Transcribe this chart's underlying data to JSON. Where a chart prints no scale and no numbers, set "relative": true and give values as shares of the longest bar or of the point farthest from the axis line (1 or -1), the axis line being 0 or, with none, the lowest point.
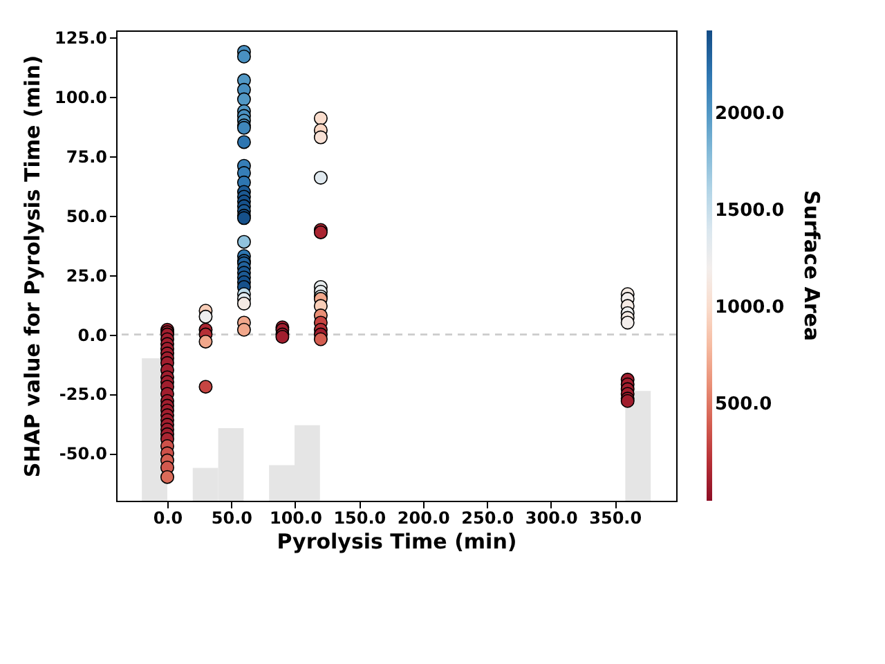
{
  "chart_data": [
    {
      "type": "scatter",
      "ylabel": "SHAP value for Pyrolysis Time (min)",
      "clabel": "Surface Area",
      "xlim": [
        -40,
        398
      ],
      "tick_labels": "y",
      "ylim": [
        -70,
        128
      ],
      "yticks": [
        {
          "value": -50,
          "label": "-50.0"
        },
        {
          "value": -25,
          "label": "-25.0"
        },
        {
          "value": 0,
          "label": "0.0"
        },
        {
          "value": 25,
          "label": "25.0"
        },
        {
          "value": 50,
          "label": "50.0"
        },
        {
          "value": 75,
          "label": "75.0"
        },
        {
          "value": 100,
          "label": "100.0"
        },
        {
          "value": 125,
          "label": "125.0"
        }
      ],
      "clim": [
        0,
        2430
      ],
      "cticks": [
        {
          "value": 500,
          "label": "500.0"
        },
        {
          "value": 1000,
          "label": "1000.0"
        },
        {
          "value": 1500,
          "label": "1500.0"
        },
        {
          "value": 2000,
          "label": "2000.0"
        }
      ],
      "grid": false,
      "marker": "circle",
      "ref_lines": [
        {
          "axis": "y",
          "value": 0,
          "color": "#cccccc",
          "line_style": "dashed"
        }
      ],
      "series": [
        {
          "x": [
            0,
            0,
            0,
            0,
            0,
            0,
            0,
            0,
            0,
            0,
            0,
            0,
            0,
            0,
            0,
            0,
            0,
            0,
            0,
            0,
            0,
            0,
            0,
            0,
            0,
            0,
            0,
            0,
            30,
            30,
            30,
            30,
            30,
            30,
            60,
            60,
            60,
            60,
            60,
            60,
            60,
            60,
            60,
            60,
            60,
            60,
            60,
            60,
            60,
            60,
            60,
            60,
            60,
            60,
            60,
            60,
            60,
            60,
            60,
            60,
            60,
            60,
            60,
            60,
            60,
            60,
            60,
            60,
            60,
            90,
            90,
            90,
            90,
            120,
            120,
            120,
            120,
            120,
            120,
            120,
            120,
            120,
            120,
            120,
            120,
            120,
            120,
            120,
            120,
            360,
            360,
            360,
            360,
            360,
            360,
            360,
            360,
            360,
            360,
            360,
            360
          ],
          "values": [
            2,
            1,
            0,
            -2,
            -4,
            -6,
            -8,
            -10,
            -12,
            -15,
            -18,
            -20,
            -22,
            -25,
            -28,
            -30,
            -32,
            -34,
            -36,
            -38,
            -40,
            -42,
            -44,
            -47,
            -50,
            -53,
            -56,
            -60,
            10,
            7.5,
            2,
            0,
            -3,
            -22,
            119,
            117,
            107,
            103,
            99,
            94,
            92,
            90,
            88,
            87,
            81,
            71,
            68,
            64,
            60,
            58,
            56,
            54,
            52,
            50,
            49,
            39,
            33,
            31,
            30,
            28,
            26,
            24,
            22,
            20,
            17,
            15,
            13,
            5,
            2,
            3,
            2,
            0,
            -1,
            91,
            86,
            83,
            66,
            44,
            43,
            20,
            18,
            16,
            15,
            12,
            8,
            5,
            2,
            0,
            -2,
            17,
            15,
            12,
            9,
            7,
            5,
            -19,
            -21,
            -23,
            -25,
            -27,
            -28
          ],
          "cvalues": [
            100,
            100,
            100,
            100,
            100,
            100,
            100,
            100,
            100,
            100,
            100,
            100,
            100,
            100,
            100,
            100,
            100,
            100,
            100,
            100,
            100,
            100,
            150,
            350,
            350,
            400,
            380,
            450,
            900,
            1250,
            150,
            200,
            700,
            300,
            2050,
            2050,
            2000,
            2050,
            2000,
            2000,
            2050,
            2000,
            2050,
            2100,
            2200,
            2150,
            2150,
            2200,
            2350,
            2350,
            2400,
            2400,
            2350,
            2400,
            2400,
            1750,
            2200,
            2250,
            2300,
            2300,
            2350,
            2350,
            2400,
            2400,
            1550,
            1350,
            1150,
            700,
            700,
            100,
            100,
            100,
            100,
            1000,
            950,
            1050,
            1350,
            150,
            150,
            1300,
            1300,
            1300,
            700,
            900,
            600,
            300,
            200,
            100,
            400,
            1150,
            1200,
            1150,
            1250,
            1150,
            1200,
            100,
            100,
            100,
            100,
            100,
            100
          ]
        }
      ]
    },
    {
      "type": "bar",
      "relative": true,
      "xlabel": "Pyrolysis Time (min)",
      "xlim": [
        -40,
        398
      ],
      "color": "#e5e5e5",
      "xticks": [
        {
          "value": 0,
          "label": "0.0"
        },
        {
          "value": 50,
          "label": "50.0"
        },
        {
          "value": 100,
          "label": "100.0"
        },
        {
          "value": 150,
          "label": "150.0"
        },
        {
          "value": 200,
          "label": "200.0"
        },
        {
          "value": 250,
          "label": "250.0"
        },
        {
          "value": 300,
          "label": "300.0"
        },
        {
          "value": 350,
          "label": "350.0"
        }
      ],
      "x": [
        -9.95,
        9.95,
        29.85,
        49.75,
        69.65,
        89.55,
        109.45,
        129.35,
        149.25,
        169.15,
        189.05,
        208.95,
        228.85,
        248.75,
        268.65,
        288.55,
        308.45,
        328.35,
        348.25,
        368.15
      ],
      "values": [
        1,
        0,
        0.23,
        0.51,
        0,
        0.25,
        0.53,
        0,
        0,
        0,
        0,
        0,
        0,
        0,
        0,
        0,
        0,
        0,
        0,
        0.77
      ]
    }
  ]
}
